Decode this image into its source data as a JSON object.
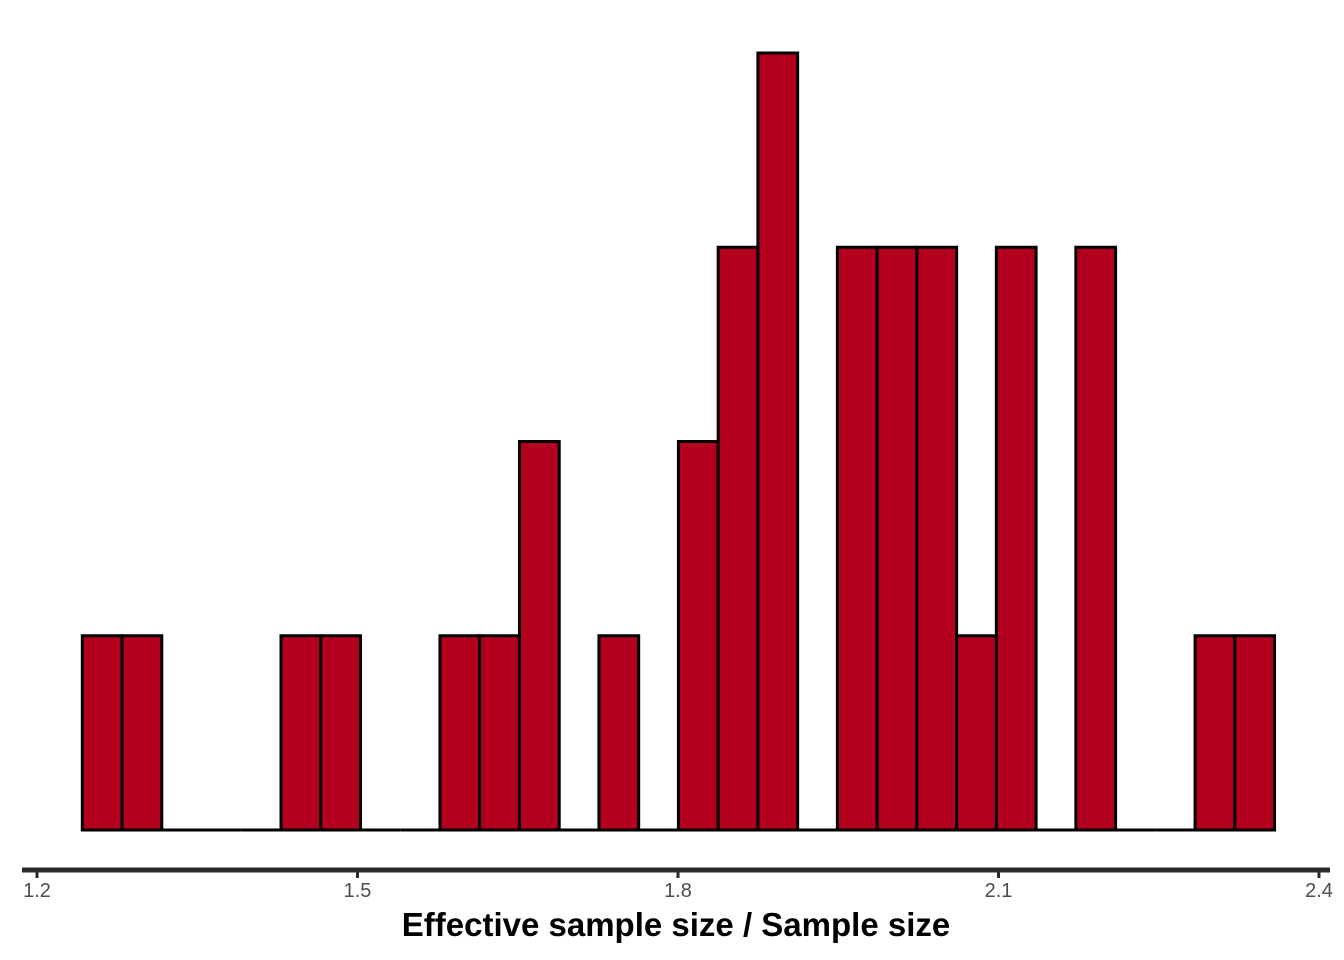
{
  "chart_data": {
    "type": "bar",
    "subtype": "histogram",
    "title": "",
    "xlabel": "Effective sample size / Sample size",
    "ylabel": "",
    "xlim": [
      1.2,
      2.4
    ],
    "ylim": [
      0,
      4
    ],
    "x_ticks": [
      "1.2",
      "1.5",
      "1.8",
      "2.1",
      "2.4"
    ],
    "x_tick_values": [
      1.2,
      1.5,
      1.8,
      2.1,
      2.4
    ],
    "y_axis_shown": false,
    "grid": false,
    "bin_start": 1.2424,
    "bin_width": 0.0372,
    "counts": [
      1,
      1,
      0,
      0,
      0,
      1,
      1,
      0,
      0,
      1,
      1,
      2,
      0,
      1,
      0,
      2,
      3,
      4,
      0,
      3,
      3,
      3,
      1,
      3,
      0,
      3,
      0,
      0,
      1,
      1
    ],
    "colors": {
      "fill": "#b2001e",
      "outline": "#000000",
      "axis": "#2b2b2b"
    }
  }
}
